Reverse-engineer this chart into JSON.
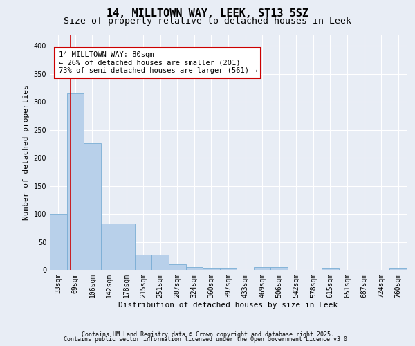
{
  "title1": "14, MILLTOWN WAY, LEEK, ST13 5SZ",
  "title2": "Size of property relative to detached houses in Leek",
  "xlabel": "Distribution of detached houses by size in Leek",
  "ylabel": "Number of detached properties",
  "categories": [
    "33sqm",
    "69sqm",
    "106sqm",
    "142sqm",
    "178sqm",
    "215sqm",
    "251sqm",
    "287sqm",
    "324sqm",
    "360sqm",
    "397sqm",
    "433sqm",
    "469sqm",
    "506sqm",
    "542sqm",
    "578sqm",
    "615sqm",
    "651sqm",
    "687sqm",
    "724sqm",
    "760sqm"
  ],
  "values": [
    100,
    315,
    226,
    83,
    83,
    27,
    27,
    10,
    5,
    2,
    2,
    0,
    5,
    5,
    0,
    0,
    2,
    0,
    0,
    0,
    2
  ],
  "bar_color": "#b8d0ea",
  "bar_edge_color": "#7aadd4",
  "vline_x": 0.73,
  "vline_color": "#cc0000",
  "annotation_text": "14 MILLTOWN WAY: 80sqm\n← 26% of detached houses are smaller (201)\n73% of semi-detached houses are larger (561) →",
  "annotation_box_color": "#ffffff",
  "annotation_box_edge": "#cc0000",
  "ylim": [
    0,
    420
  ],
  "yticks": [
    0,
    50,
    100,
    150,
    200,
    250,
    300,
    350,
    400
  ],
  "bg_color": "#e8edf5",
  "plot_bg_color": "#e8edf5",
  "grid_color": "#ffffff",
  "footer1": "Contains HM Land Registry data © Crown copyright and database right 2025.",
  "footer2": "Contains public sector information licensed under the Open Government Licence v3.0.",
  "title_fontsize": 11,
  "subtitle_fontsize": 9.5,
  "tick_fontsize": 7,
  "label_fontsize": 8,
  "annotation_fontsize": 7.5,
  "footer_fontsize": 6
}
